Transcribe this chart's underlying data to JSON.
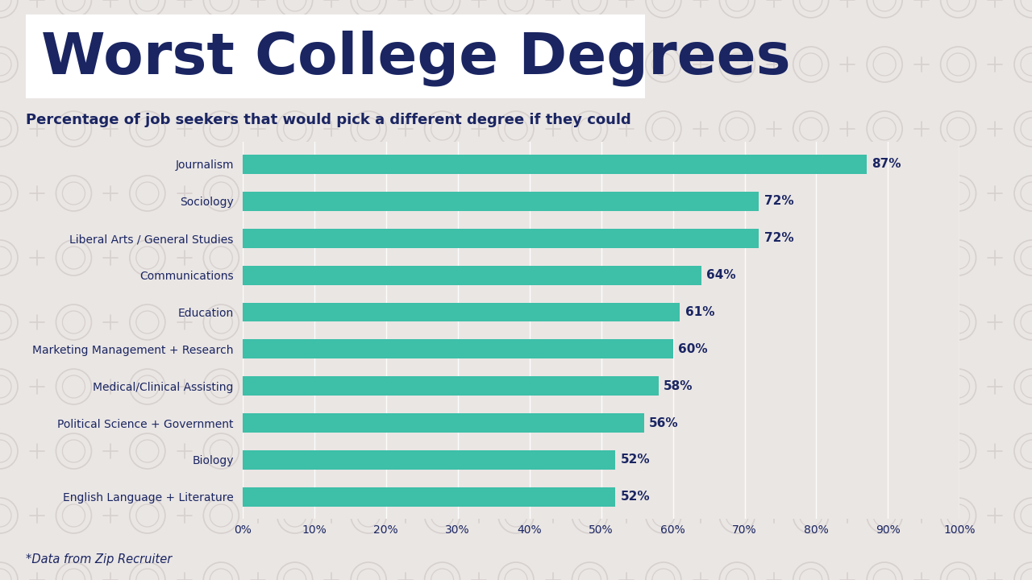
{
  "title": "Worst College Degrees",
  "subtitle": "Percentage of job seekers that would pick a different degree if they could",
  "footnote": "*Data from Zip Recruiter",
  "categories": [
    "English Language + Literature",
    "Biology",
    "Political Science + Government",
    "Medical/Clinical Assisting",
    "Marketing Management + Research",
    "Education",
    "Communications",
    "Liberal Arts / General Studies",
    "Sociology",
    "Journalism"
  ],
  "values": [
    52,
    52,
    56,
    58,
    60,
    61,
    64,
    72,
    72,
    87
  ],
  "bar_color": "#3dbfa8",
  "bg_color": "#eae6e4",
  "title_color": "#1a2562",
  "subtitle_color": "#1a2562",
  "label_color": "#1a2562",
  "value_color": "#1a2562",
  "tick_color": "#1a2562",
  "title_bg_color": "#ffffff",
  "wm_color": "#d6d0ce",
  "xlim": [
    0,
    100
  ],
  "xticks": [
    0,
    10,
    20,
    30,
    40,
    50,
    60,
    70,
    80,
    90,
    100
  ],
  "xtick_labels": [
    "0%",
    "10%",
    "20%",
    "30%",
    "40%",
    "50%",
    "60%",
    "70%",
    "80%",
    "90%",
    "100%"
  ]
}
